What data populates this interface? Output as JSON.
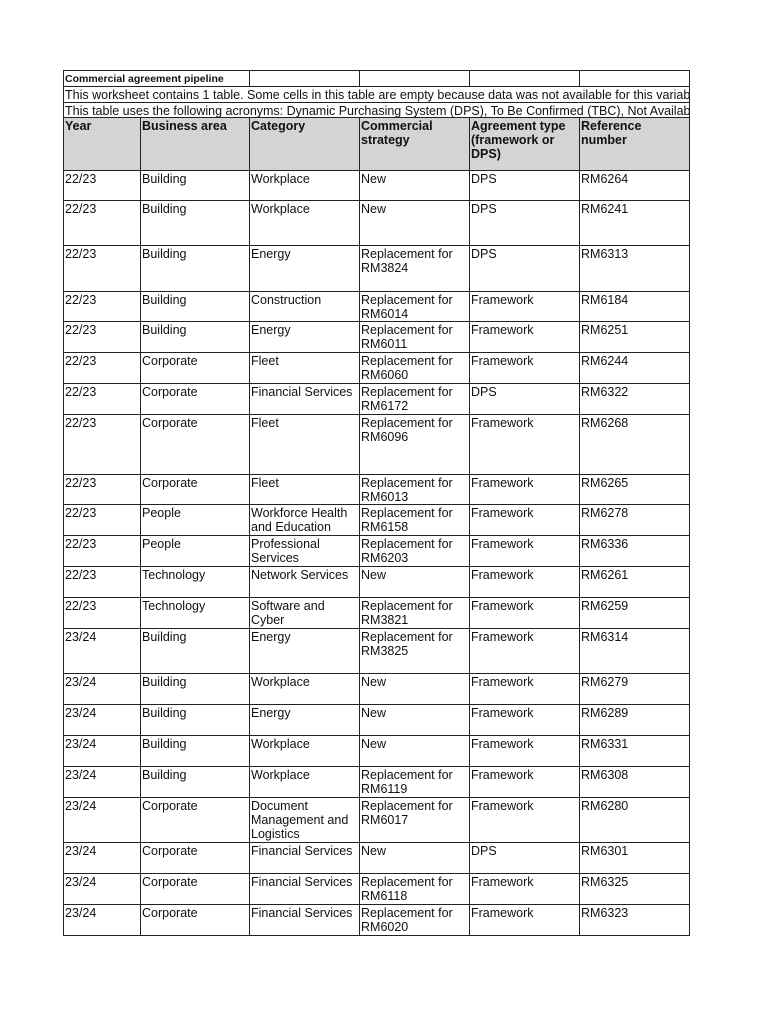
{
  "sheet": {
    "title": "Commercial agreement pipeline",
    "note1": "This worksheet contains 1 table. Some cells in this table are empty because data was not available for this variable",
    "note2": "This table uses the following acronyms: Dynamic Purchasing System (DPS), To Be Confirmed (TBC), Not Available",
    "headers": [
      "Year",
      "Business area",
      "Category",
      "Commercial\nstrategy",
      "Agreement type\n(framework or\nDPS)",
      "Reference\nnumber"
    ],
    "rows": [
      [
        "22/23",
        "Building",
        "Workplace",
        "New",
        "DPS",
        "RM6264"
      ],
      [
        "22/23",
        "Building",
        "Workplace",
        "New",
        "DPS",
        "RM6241"
      ],
      [
        "22/23",
        "Building",
        "Energy",
        "Replacement for\nRM3824",
        "DPS",
        "RM6313"
      ],
      [
        "22/23",
        "Building",
        "Construction",
        "Replacement for\nRM6014",
        "Framework",
        "RM6184"
      ],
      [
        "22/23",
        "Building",
        "Energy",
        "Replacement for\nRM6011",
        "Framework",
        "RM6251"
      ],
      [
        "22/23",
        "Corporate",
        "Fleet",
        "Replacement for\nRM6060",
        "Framework",
        "RM6244"
      ],
      [
        "22/23",
        "Corporate",
        "Financial Services",
        "Replacement for\nRM6172",
        "DPS",
        "RM6322"
      ],
      [
        "22/23",
        "Corporate",
        "Fleet",
        "Replacement for\nRM6096",
        "Framework",
        "RM6268"
      ],
      [
        "22/23",
        "Corporate",
        "Fleet",
        "Replacement for\nRM6013",
        "Framework",
        "RM6265"
      ],
      [
        "22/23",
        "People",
        "Workforce Health\nand Education",
        "Replacement for\nRM6158",
        "Framework",
        "RM6278"
      ],
      [
        "22/23",
        "People",
        "Professional\nServices",
        "Replacement for\nRM6203",
        "Framework",
        "RM6336"
      ],
      [
        "22/23",
        "Technology",
        "Network Services",
        "New",
        "Framework",
        "RM6261"
      ],
      [
        "22/23",
        "Technology",
        "Software and\nCyber",
        "Replacement for\nRM3821",
        "Framework",
        "RM6259"
      ],
      [
        "23/24",
        "Building",
        "Energy",
        "Replacement for\nRM3825",
        "Framework",
        "RM6314"
      ],
      [
        "23/24",
        "Building",
        "Workplace",
        "New",
        "Framework",
        "RM6279"
      ],
      [
        "23/24",
        "Building",
        "Energy",
        "New",
        "Framework",
        "RM6289"
      ],
      [
        "23/24",
        "Building",
        "Workplace",
        "New",
        "Framework",
        "RM6331"
      ],
      [
        "23/24",
        "Building",
        "Workplace",
        "Replacement for\nRM6119",
        "Framework",
        "RM6308"
      ],
      [
        "23/24",
        "Corporate",
        "Document\nManagement and\nLogistics",
        "Replacement for\nRM6017",
        "Framework",
        "RM6280"
      ],
      [
        "23/24",
        "Corporate",
        "Financial Services",
        "New",
        "DPS",
        "RM6301"
      ],
      [
        "23/24",
        "Corporate",
        "Financial Services",
        "Replacement for\nRM6118",
        "Framework",
        "RM6325"
      ],
      [
        "23/24",
        "Corporate",
        "Financial Services",
        "Replacement for\nRM6020",
        "Framework",
        "RM6323"
      ]
    ]
  }
}
